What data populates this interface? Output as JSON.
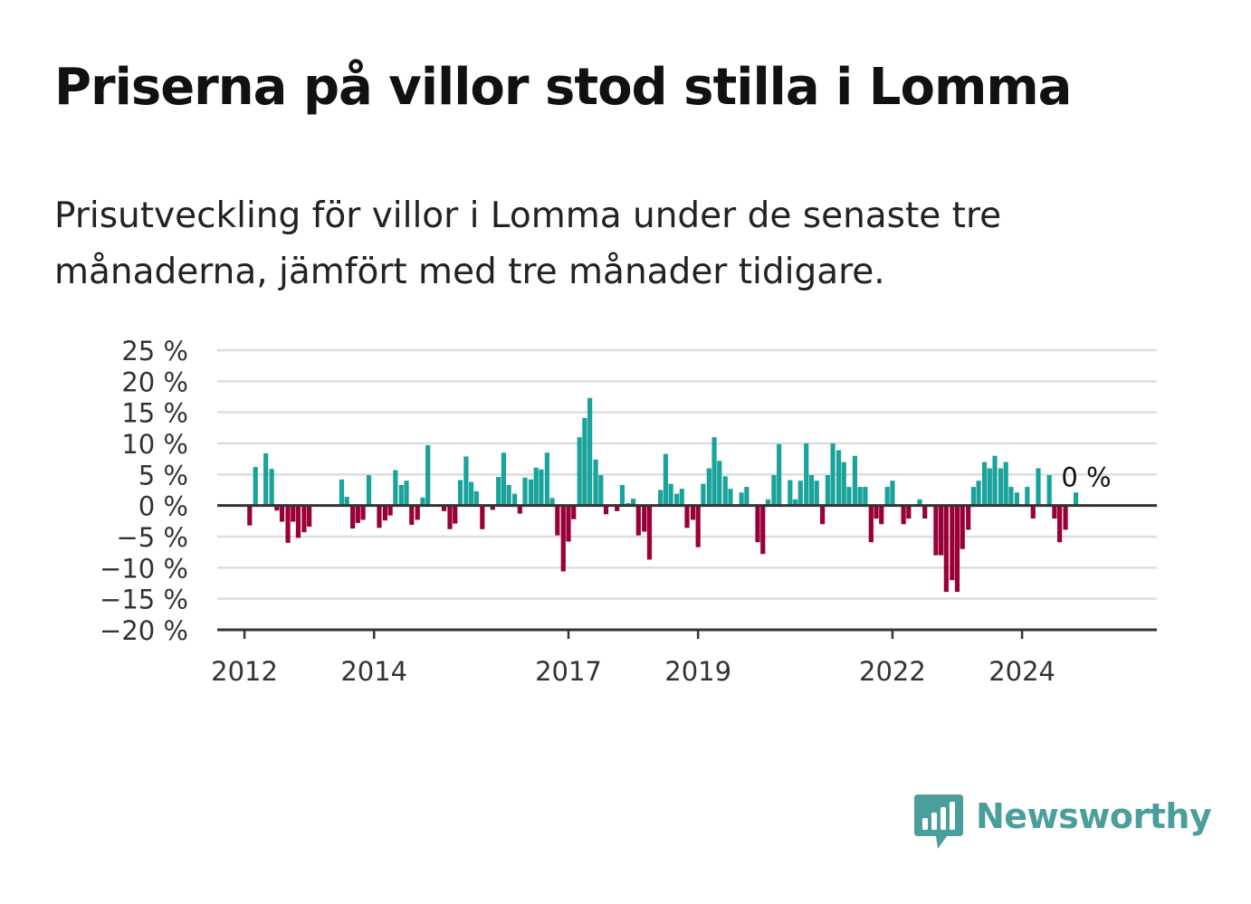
{
  "title": "Priserna på villor stod stilla i Lomma",
  "subtitle": "Prisutveckling för villor i Lomma under de senaste tre månaderna, jämfört med tre månader tidigare.",
  "brand": {
    "name": "Newsworthy",
    "color": "#4a9e9b"
  },
  "colors": {
    "positive": "#1aa39a",
    "negative": "#9a0038",
    "grid": "#dddddd",
    "axis": "#333333"
  },
  "chart_data": {
    "type": "bar",
    "title": "",
    "xlabel": "",
    "ylabel": "",
    "ylim": [
      -20,
      25
    ],
    "y_ticks": [
      25,
      20,
      15,
      10,
      5,
      0,
      -5,
      -10,
      -15,
      -20
    ],
    "y_tick_labels": [
      "25 %",
      "20 %",
      "15 %",
      "10 %",
      "5 %",
      "0 %",
      "−5 %",
      "−10 %",
      "−15 %",
      "−20 %"
    ],
    "x_ticks": [
      2012,
      2014,
      2017,
      2019,
      2022,
      2024
    ],
    "x_tick_labels": [
      "2012",
      "2014",
      "2017",
      "2019",
      "2022",
      "2024"
    ],
    "x_range": [
      2011.58,
      2026.08
    ],
    "annotation": {
      "text": "0 %",
      "x": 2024.92,
      "value": 0
    },
    "grid": true,
    "bars": [
      {
        "x": 2012.08,
        "value": -3.2
      },
      {
        "x": 2012.17,
        "value": 6.2
      },
      {
        "x": 2012.33,
        "value": 8.4
      },
      {
        "x": 2012.42,
        "value": 5.9
      },
      {
        "x": 2012.5,
        "value": -0.8
      },
      {
        "x": 2012.58,
        "value": -2.6
      },
      {
        "x": 2012.67,
        "value": -6.0
      },
      {
        "x": 2012.75,
        "value": -2.6
      },
      {
        "x": 2012.83,
        "value": -5.2
      },
      {
        "x": 2012.92,
        "value": -4.3
      },
      {
        "x": 2013.0,
        "value": -3.4
      },
      {
        "x": 2013.5,
        "value": 4.2
      },
      {
        "x": 2013.58,
        "value": 1.4
      },
      {
        "x": 2013.67,
        "value": -3.7
      },
      {
        "x": 2013.75,
        "value": -2.8
      },
      {
        "x": 2013.83,
        "value": -2.3
      },
      {
        "x": 2013.92,
        "value": 4.9
      },
      {
        "x": 2014.08,
        "value": -3.6
      },
      {
        "x": 2014.17,
        "value": -2.4
      },
      {
        "x": 2014.25,
        "value": -1.6
      },
      {
        "x": 2014.33,
        "value": 5.7
      },
      {
        "x": 2014.42,
        "value": 3.3
      },
      {
        "x": 2014.5,
        "value": 4.0
      },
      {
        "x": 2014.58,
        "value": -3.1
      },
      {
        "x": 2014.67,
        "value": -2.3
      },
      {
        "x": 2014.75,
        "value": 1.3
      },
      {
        "x": 2014.83,
        "value": 9.7
      },
      {
        "x": 2015.08,
        "value": -0.9
      },
      {
        "x": 2015.17,
        "value": -3.8
      },
      {
        "x": 2015.25,
        "value": -2.9
      },
      {
        "x": 2015.33,
        "value": 4.1
      },
      {
        "x": 2015.42,
        "value": 7.9
      },
      {
        "x": 2015.5,
        "value": 3.8
      },
      {
        "x": 2015.58,
        "value": 2.3
      },
      {
        "x": 2015.67,
        "value": -3.8
      },
      {
        "x": 2015.83,
        "value": -0.7
      },
      {
        "x": 2015.92,
        "value": 4.6
      },
      {
        "x": 2016.0,
        "value": 8.5
      },
      {
        "x": 2016.08,
        "value": 3.3
      },
      {
        "x": 2016.17,
        "value": 1.9
      },
      {
        "x": 2016.25,
        "value": -1.3
      },
      {
        "x": 2016.33,
        "value": 4.5
      },
      {
        "x": 2016.42,
        "value": 4.2
      },
      {
        "x": 2016.5,
        "value": 6.1
      },
      {
        "x": 2016.58,
        "value": 5.8
      },
      {
        "x": 2016.67,
        "value": 8.5
      },
      {
        "x": 2016.75,
        "value": 1.2
      },
      {
        "x": 2016.83,
        "value": -4.8
      },
      {
        "x": 2016.92,
        "value": -10.6
      },
      {
        "x": 2017.0,
        "value": -5.8
      },
      {
        "x": 2017.08,
        "value": -2.2
      },
      {
        "x": 2017.17,
        "value": 11.0
      },
      {
        "x": 2017.25,
        "value": 14.1
      },
      {
        "x": 2017.33,
        "value": 17.3
      },
      {
        "x": 2017.42,
        "value": 7.4
      },
      {
        "x": 2017.5,
        "value": 4.9
      },
      {
        "x": 2017.58,
        "value": -1.4
      },
      {
        "x": 2017.75,
        "value": -0.9
      },
      {
        "x": 2017.83,
        "value": 3.3
      },
      {
        "x": 2017.92,
        "value": 0.4
      },
      {
        "x": 2018.0,
        "value": 1.1
      },
      {
        "x": 2018.08,
        "value": -4.8
      },
      {
        "x": 2018.17,
        "value": -4.2
      },
      {
        "x": 2018.25,
        "value": -8.7
      },
      {
        "x": 2018.42,
        "value": 2.5
      },
      {
        "x": 2018.5,
        "value": 8.3
      },
      {
        "x": 2018.58,
        "value": 3.5
      },
      {
        "x": 2018.67,
        "value": 1.9
      },
      {
        "x": 2018.75,
        "value": 2.7
      },
      {
        "x": 2018.83,
        "value": -3.6
      },
      {
        "x": 2018.92,
        "value": -2.3
      },
      {
        "x": 2019.0,
        "value": -6.7
      },
      {
        "x": 2019.08,
        "value": 3.5
      },
      {
        "x": 2019.17,
        "value": 6.0
      },
      {
        "x": 2019.25,
        "value": 11.0
      },
      {
        "x": 2019.33,
        "value": 7.2
      },
      {
        "x": 2019.42,
        "value": 4.7
      },
      {
        "x": 2019.5,
        "value": 2.7
      },
      {
        "x": 2019.67,
        "value": 2.1
      },
      {
        "x": 2019.75,
        "value": 3.0
      },
      {
        "x": 2019.92,
        "value": -5.9
      },
      {
        "x": 2020.0,
        "value": -7.8
      },
      {
        "x": 2020.08,
        "value": 1.0
      },
      {
        "x": 2020.17,
        "value": 4.9
      },
      {
        "x": 2020.25,
        "value": 9.9
      },
      {
        "x": 2020.42,
        "value": 4.1
      },
      {
        "x": 2020.5,
        "value": 1.0
      },
      {
        "x": 2020.58,
        "value": 4.0
      },
      {
        "x": 2020.67,
        "value": 10.0
      },
      {
        "x": 2020.75,
        "value": 4.9
      },
      {
        "x": 2020.83,
        "value": 4.0
      },
      {
        "x": 2020.92,
        "value": -3.0
      },
      {
        "x": 2021.0,
        "value": 4.9
      },
      {
        "x": 2021.08,
        "value": 10.0
      },
      {
        "x": 2021.17,
        "value": 8.9
      },
      {
        "x": 2021.25,
        "value": 7.0
      },
      {
        "x": 2021.33,
        "value": 3.0
      },
      {
        "x": 2021.42,
        "value": 8.0
      },
      {
        "x": 2021.5,
        "value": 3.0
      },
      {
        "x": 2021.58,
        "value": 3.0
      },
      {
        "x": 2021.67,
        "value": -5.9
      },
      {
        "x": 2021.75,
        "value": -2.1
      },
      {
        "x": 2021.83,
        "value": -3.0
      },
      {
        "x": 2021.92,
        "value": 3.0
      },
      {
        "x": 2022.0,
        "value": 4.0
      },
      {
        "x": 2022.17,
        "value": -3.0
      },
      {
        "x": 2022.25,
        "value": -2.1
      },
      {
        "x": 2022.42,
        "value": 1.0
      },
      {
        "x": 2022.5,
        "value": -2.1
      },
      {
        "x": 2022.67,
        "value": -8.0
      },
      {
        "x": 2022.75,
        "value": -8.0
      },
      {
        "x": 2022.83,
        "value": -13.9
      },
      {
        "x": 2022.92,
        "value": -12.0
      },
      {
        "x": 2023.0,
        "value": -13.9
      },
      {
        "x": 2023.08,
        "value": -7.0
      },
      {
        "x": 2023.17,
        "value": -3.9
      },
      {
        "x": 2023.25,
        "value": 3.0
      },
      {
        "x": 2023.33,
        "value": 4.0
      },
      {
        "x": 2023.42,
        "value": 7.0
      },
      {
        "x": 2023.5,
        "value": 6.0
      },
      {
        "x": 2023.58,
        "value": 8.0
      },
      {
        "x": 2023.67,
        "value": 6.0
      },
      {
        "x": 2023.75,
        "value": 7.0
      },
      {
        "x": 2023.83,
        "value": 3.0
      },
      {
        "x": 2023.92,
        "value": 2.1
      },
      {
        "x": 2024.08,
        "value": 3.0
      },
      {
        "x": 2024.17,
        "value": -2.1
      },
      {
        "x": 2024.25,
        "value": 6.0
      },
      {
        "x": 2024.42,
        "value": 4.9
      },
      {
        "x": 2024.5,
        "value": -2.1
      },
      {
        "x": 2024.58,
        "value": -5.9
      },
      {
        "x": 2024.67,
        "value": -3.9
      },
      {
        "x": 2024.83,
        "value": 2.1
      },
      {
        "x": 2024.92,
        "value": 0.0
      }
    ]
  }
}
